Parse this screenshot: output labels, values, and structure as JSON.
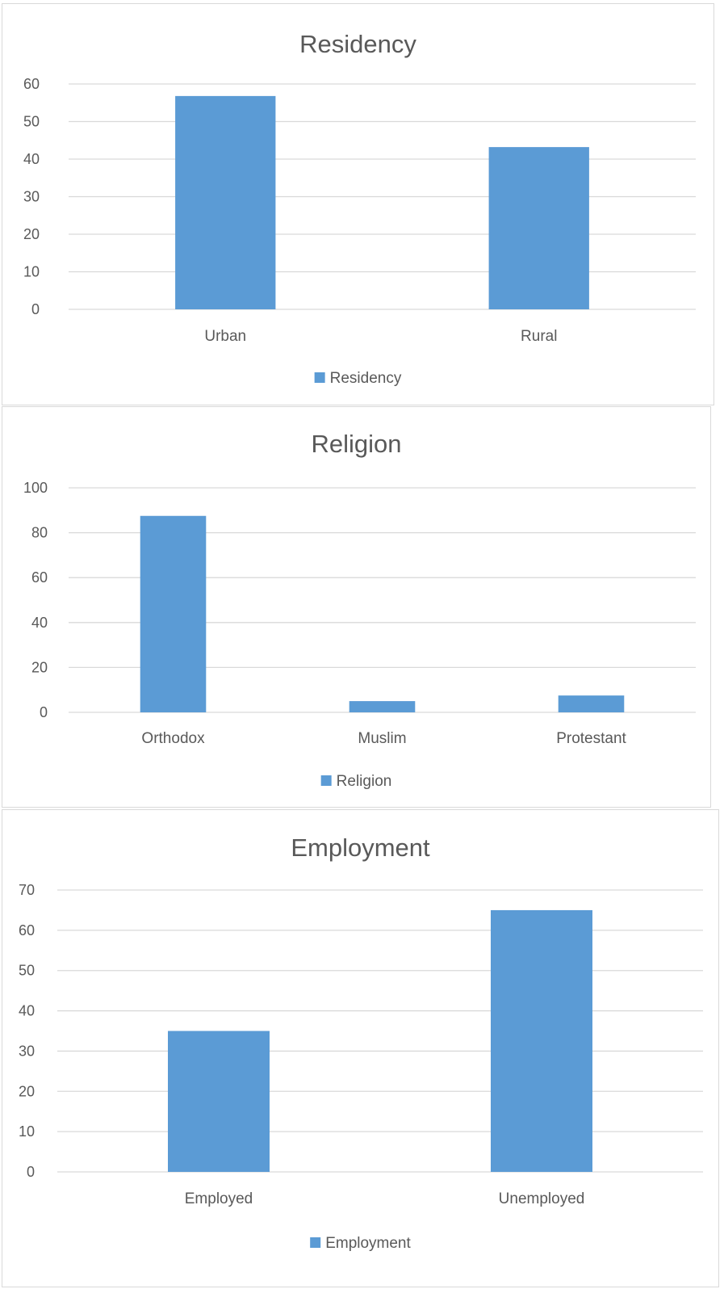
{
  "colors": {
    "bar": "#5b9bd5",
    "grid": "#d9d9d9",
    "text": "#595959"
  },
  "chart_data": [
    {
      "type": "bar",
      "title": "Residency",
      "categories": [
        "Urban",
        "Rural"
      ],
      "series": [
        {
          "name": "Residency",
          "values": [
            56.8,
            43.2
          ]
        }
      ],
      "ylim": [
        0,
        60
      ],
      "yticks": [
        0,
        10,
        20,
        30,
        40,
        50,
        60
      ],
      "grid": true,
      "legend": "bottom"
    },
    {
      "type": "bar",
      "title": "Religion",
      "categories": [
        "Orthodox",
        "Muslim",
        "Protestant"
      ],
      "series": [
        {
          "name": "Religion",
          "values": [
            87.5,
            5.0,
            7.5
          ]
        }
      ],
      "ylim": [
        0,
        100
      ],
      "yticks": [
        0,
        20,
        40,
        60,
        80,
        100
      ],
      "grid": true,
      "legend": "bottom"
    },
    {
      "type": "bar",
      "title": "Employment",
      "categories": [
        "Employed",
        "Unemployed"
      ],
      "series": [
        {
          "name": "Employment",
          "values": [
            35,
            65
          ]
        }
      ],
      "ylim": [
        0,
        70
      ],
      "yticks": [
        0,
        10,
        20,
        30,
        40,
        50,
        60,
        70
      ],
      "grid": true,
      "legend": "bottom"
    }
  ]
}
